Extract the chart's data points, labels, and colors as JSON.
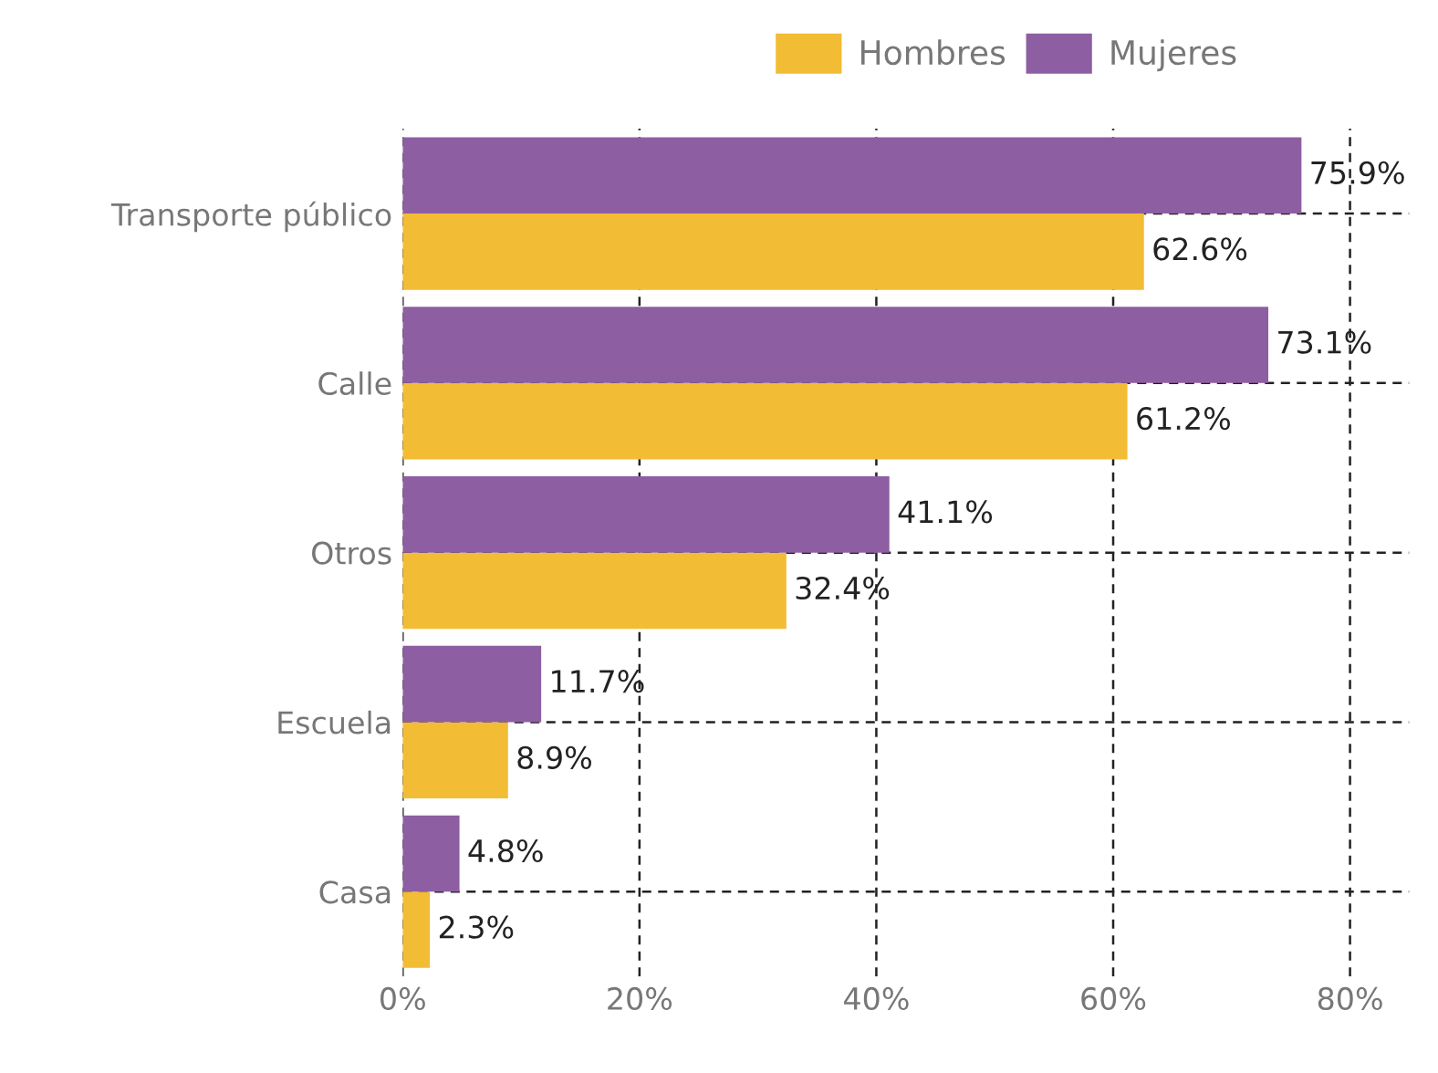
{
  "chart_data": {
    "type": "bar",
    "orientation": "horizontal",
    "categories": [
      "Transporte público",
      "Calle",
      "Otros",
      "Escuela",
      "Casa"
    ],
    "series": [
      {
        "name": "Hombres",
        "color": "#f2bc35",
        "values": [
          62.6,
          61.2,
          32.4,
          8.9,
          2.3
        ],
        "value_labels": [
          "62.6%",
          "61.2%",
          "32.4%",
          "8.9%",
          "2.3%"
        ]
      },
      {
        "name": "Mujeres",
        "color": "#8e5ea2",
        "values": [
          75.9,
          73.1,
          41.1,
          11.7,
          4.8
        ],
        "value_labels": [
          "75.9%",
          "73.1%",
          "41.1%",
          "11.7%",
          "4.8%"
        ]
      }
    ],
    "xlim": [
      0,
      85
    ],
    "xticks": [
      {
        "value": 0,
        "label": "0%"
      },
      {
        "value": 20,
        "label": "20%"
      },
      {
        "value": 40,
        "label": "40%"
      },
      {
        "value": 60,
        "label": "60%"
      },
      {
        "value": 80,
        "label": "80%"
      }
    ],
    "grid": true,
    "legend": "top"
  }
}
